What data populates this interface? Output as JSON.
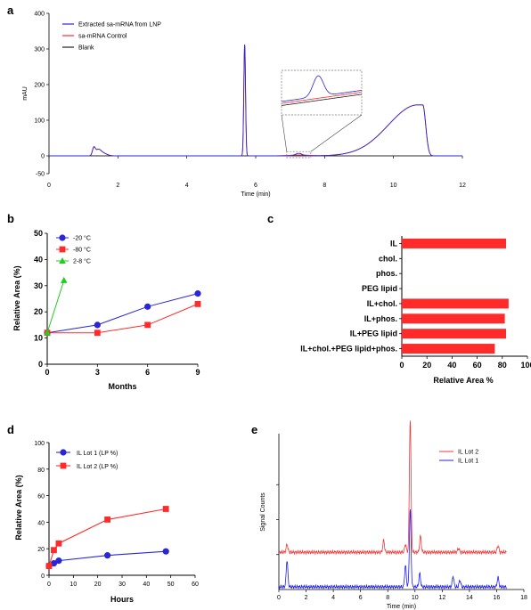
{
  "panels": {
    "a": {
      "label": "a"
    },
    "b": {
      "label": "b"
    },
    "c": {
      "label": "c"
    },
    "d": {
      "label": "d"
    },
    "e": {
      "label": "e"
    }
  },
  "colors": {
    "blue": "#2a25d6",
    "red": "#ff2a2a",
    "green": "#22cc22",
    "black": "#222222",
    "pale_red": "#f03a3a",
    "pale_blue": "#2020ee"
  },
  "chart_data": [
    {
      "id": "a",
      "type": "line",
      "xlabel": "Time (min)",
      "ylabel": "mAU",
      "xlim": [
        0,
        12
      ],
      "ylim": [
        -50,
        400
      ],
      "xticks": [
        "0",
        "2",
        "4",
        "6",
        "8",
        "10",
        "12"
      ],
      "yticks": [
        "-50",
        "0",
        "100",
        "200",
        "300",
        "400"
      ],
      "legend_position": "top-left",
      "series": [
        {
          "name": "Extracted sa-mRNA from LNP",
          "color": "#2a25d6"
        },
        {
          "name": "sa-mRNA Control",
          "color": "#ff2a2a"
        },
        {
          "name": "Blank",
          "color": "#222222"
        }
      ],
      "features": [
        {
          "x": 1.3,
          "y": 20
        },
        {
          "x": 5.68,
          "y": 312
        },
        {
          "x": 7.25,
          "y": 7
        },
        {
          "x": 10.75,
          "y": 143
        }
      ]
    },
    {
      "id": "b",
      "type": "line",
      "xlabel": "Months",
      "ylabel": "Relative Area (%)",
      "xlim": [
        0,
        9
      ],
      "ylim": [
        0,
        50
      ],
      "xticks": [
        "0",
        "3",
        "6",
        "9"
      ],
      "yticks": [
        "0",
        "10",
        "20",
        "30",
        "40",
        "50"
      ],
      "legend_position": "top-left",
      "series": [
        {
          "name": "-20 °C",
          "color": "#2a25d6",
          "marker": "circle",
          "x": [
            0,
            3,
            6,
            9
          ],
          "y": [
            12,
            15,
            22,
            27
          ]
        },
        {
          "name": "-80 °C",
          "color": "#ff2a2a",
          "marker": "square",
          "x": [
            0,
            3,
            6,
            9
          ],
          "y": [
            12,
            12,
            15,
            23
          ]
        },
        {
          "name": "2-8 °C",
          "color": "#22cc22",
          "marker": "triangle",
          "x": [
            0,
            1
          ],
          "y": [
            12,
            32
          ]
        }
      ]
    },
    {
      "id": "c",
      "type": "bar",
      "orientation": "horizontal",
      "xlabel": "Relative Area %",
      "xlim": [
        0,
        100
      ],
      "xticks": [
        "0",
        "20",
        "40",
        "60",
        "80",
        "100"
      ],
      "categories": [
        "IL",
        "chol.",
        "phos.",
        "PEG lipid",
        "IL+chol.",
        "IL+phos.",
        "IL+PEG lipid",
        "IL+chol.+PEG lipid+phos."
      ],
      "values": [
        83,
        0,
        0,
        0,
        85,
        82,
        83,
        74
      ],
      "color": "#ff2a2a"
    },
    {
      "id": "d",
      "type": "line",
      "xlabel": "Hours",
      "ylabel": "Relative Area (%)",
      "xlim": [
        0,
        60
      ],
      "ylim": [
        0,
        100
      ],
      "xticks": [
        "0",
        "10",
        "20",
        "30",
        "40",
        "50",
        "60"
      ],
      "yticks": [
        "0",
        "20",
        "40",
        "60",
        "80",
        "100"
      ],
      "legend_position": "top-left",
      "series": [
        {
          "name": "IL Lot 1 (LP %)",
          "color": "#2a25d6",
          "marker": "circle",
          "x": [
            0,
            2,
            4,
            24,
            48
          ],
          "y": [
            7,
            9,
            11,
            15,
            18
          ]
        },
        {
          "name": "IL Lot 2 (LP %)",
          "color": "#ff2a2a",
          "marker": "square",
          "x": [
            0,
            2,
            4,
            24,
            48
          ],
          "y": [
            7,
            19,
            24,
            42,
            50
          ]
        }
      ]
    },
    {
      "id": "e",
      "type": "line",
      "xlabel": "Time (min)",
      "ylabel": "Signal Counts",
      "xlim": [
        0,
        18
      ],
      "xticks": [
        "0",
        "2",
        "4",
        "6",
        "8",
        "10",
        "12",
        "14",
        "16",
        "18"
      ],
      "legend_position": "top-right",
      "series": [
        {
          "name": "IL Lot 2",
          "color": "#f03a3a",
          "baseline": 0.28,
          "peaks": [
            [
              0.6,
              0.06
            ],
            [
              7.7,
              0.09
            ],
            [
              9.3,
              0.06
            ],
            [
              9.65,
              1.0
            ],
            [
              10.4,
              0.12
            ],
            [
              13.2,
              0.03
            ],
            [
              16.1,
              0.05
            ]
          ]
        },
        {
          "name": "IL Lot 1",
          "color": "#2020ee",
          "baseline": 0.02,
          "peaks": [
            [
              0.6,
              0.2
            ],
            [
              9.3,
              0.16
            ],
            [
              9.65,
              0.58
            ],
            [
              10.35,
              0.1
            ],
            [
              12.8,
              0.08
            ],
            [
              13.3,
              0.05
            ],
            [
              16.1,
              0.07
            ]
          ]
        }
      ]
    }
  ]
}
